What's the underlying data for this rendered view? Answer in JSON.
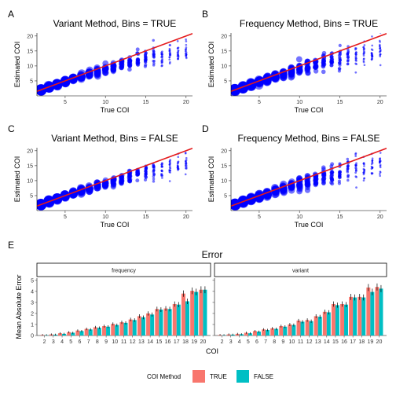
{
  "chart_data": {
    "scatter_panels": [
      {
        "letter": "A",
        "type": "scatter",
        "title": "Variant Method, Bins = TRUE",
        "xlabel": "True COI",
        "ylabel": "Estimated COI",
        "xticks": [
          5,
          10,
          15,
          20
        ],
        "yticks": [
          5,
          10,
          15,
          20
        ],
        "xlim": [
          1.5,
          20.8
        ],
        "ylim": [
          0,
          21
        ],
        "reference_line": "y = x",
        "estimates": [
          {
            "x": 2,
            "mean": 2.0,
            "spread": 0.2
          },
          {
            "x": 3,
            "mean": 3.0,
            "spread": 0.3
          },
          {
            "x": 4,
            "mean": 3.8,
            "spread": 0.4
          },
          {
            "x": 5,
            "mean": 4.8,
            "spread": 0.5
          },
          {
            "x": 6,
            "mean": 5.6,
            "spread": 0.6
          },
          {
            "x": 7,
            "mean": 6.4,
            "spread": 0.8
          },
          {
            "x": 8,
            "mean": 7.3,
            "spread": 1.0
          },
          {
            "x": 9,
            "mean": 8.1,
            "spread": 1.2
          },
          {
            "x": 10,
            "mean": 8.9,
            "spread": 1.4
          },
          {
            "x": 11,
            "mean": 9.7,
            "spread": 1.6
          },
          {
            "x": 12,
            "mean": 10.5,
            "spread": 1.8
          },
          {
            "x": 13,
            "mean": 11.2,
            "spread": 2.0
          },
          {
            "x": 14,
            "mean": 11.9,
            "spread": 2.2
          },
          {
            "x": 15,
            "mean": 12.6,
            "spread": 2.4
          },
          {
            "x": 16,
            "mean": 13.1,
            "spread": 2.6
          },
          {
            "x": 17,
            "mean": 13.7,
            "spread": 2.8
          },
          {
            "x": 18,
            "mean": 14.2,
            "spread": 3.0
          },
          {
            "x": 19,
            "mean": 14.8,
            "spread": 3.1
          },
          {
            "x": 20,
            "mean": 15.2,
            "spread": 3.3
          }
        ]
      },
      {
        "letter": "B",
        "type": "scatter",
        "title": "Frequency Method, Bins = TRUE",
        "xlabel": "True COI",
        "ylabel": "Estimated COI",
        "xticks": [
          5,
          10,
          15,
          20
        ],
        "yticks": [
          5,
          10,
          15,
          20
        ],
        "xlim": [
          1.5,
          20.8
        ],
        "ylim": [
          0,
          21
        ],
        "reference_line": "y = x",
        "estimates": [
          {
            "x": 2,
            "mean": 2.0,
            "spread": 0.3
          },
          {
            "x": 3,
            "mean": 2.9,
            "spread": 0.4
          },
          {
            "x": 4,
            "mean": 3.8,
            "spread": 0.5
          },
          {
            "x": 5,
            "mean": 4.7,
            "spread": 0.6
          },
          {
            "x": 6,
            "mean": 5.5,
            "spread": 0.8
          },
          {
            "x": 7,
            "mean": 6.3,
            "spread": 1.0
          },
          {
            "x": 8,
            "mean": 7.2,
            "spread": 1.3
          },
          {
            "x": 9,
            "mean": 8.0,
            "spread": 1.6
          },
          {
            "x": 10,
            "mean": 8.8,
            "spread": 1.9
          },
          {
            "x": 11,
            "mean": 9.6,
            "spread": 2.2
          },
          {
            "x": 12,
            "mean": 10.3,
            "spread": 2.5
          },
          {
            "x": 13,
            "mean": 11.0,
            "spread": 2.8
          },
          {
            "x": 14,
            "mean": 11.7,
            "spread": 3.0
          },
          {
            "x": 15,
            "mean": 12.4,
            "spread": 3.3
          },
          {
            "x": 16,
            "mean": 13.0,
            "spread": 3.5
          },
          {
            "x": 17,
            "mean": 13.6,
            "spread": 3.7
          },
          {
            "x": 18,
            "mean": 14.1,
            "spread": 3.9
          },
          {
            "x": 19,
            "mean": 14.6,
            "spread": 4.0
          },
          {
            "x": 20,
            "mean": 15.0,
            "spread": 4.2
          }
        ]
      },
      {
        "letter": "C",
        "type": "scatter",
        "title": "Variant Method, Bins = FALSE",
        "xlabel": "True COI",
        "ylabel": "Estimated COI",
        "xticks": [
          5,
          10,
          15,
          20
        ],
        "yticks": [
          5,
          10,
          15,
          20
        ],
        "xlim": [
          1.5,
          20.8
        ],
        "ylim": [
          0,
          21
        ],
        "reference_line": "y = x",
        "estimates": [
          {
            "x": 2,
            "mean": 2.0,
            "spread": 0.2
          },
          {
            "x": 3,
            "mean": 3.0,
            "spread": 0.3
          },
          {
            "x": 4,
            "mean": 3.9,
            "spread": 0.4
          },
          {
            "x": 5,
            "mean": 4.8,
            "spread": 0.5
          },
          {
            "x": 6,
            "mean": 5.7,
            "spread": 0.6
          },
          {
            "x": 7,
            "mean": 6.5,
            "spread": 0.8
          },
          {
            "x": 8,
            "mean": 7.4,
            "spread": 1.0
          },
          {
            "x": 9,
            "mean": 8.2,
            "spread": 1.2
          },
          {
            "x": 10,
            "mean": 9.0,
            "spread": 1.4
          },
          {
            "x": 11,
            "mean": 9.8,
            "spread": 1.6
          },
          {
            "x": 12,
            "mean": 10.6,
            "spread": 1.8
          },
          {
            "x": 13,
            "mean": 11.3,
            "spread": 2.0
          },
          {
            "x": 14,
            "mean": 12.0,
            "spread": 2.2
          },
          {
            "x": 15,
            "mean": 12.7,
            "spread": 2.4
          },
          {
            "x": 16,
            "mean": 13.3,
            "spread": 2.6
          },
          {
            "x": 17,
            "mean": 13.9,
            "spread": 2.8
          },
          {
            "x": 18,
            "mean": 14.5,
            "spread": 3.0
          },
          {
            "x": 19,
            "mean": 15.0,
            "spread": 3.1
          },
          {
            "x": 20,
            "mean": 15.6,
            "spread": 3.3
          }
        ]
      },
      {
        "letter": "D",
        "type": "scatter",
        "title": "Frequency Method, Bins = FALSE",
        "xlabel": "True COI",
        "ylabel": "Estimated COI",
        "xticks": [
          5,
          10,
          15,
          20
        ],
        "yticks": [
          5,
          10,
          15,
          20
        ],
        "xlim": [
          1.5,
          20.8
        ],
        "ylim": [
          0,
          21
        ],
        "reference_line": "y = x",
        "estimates": [
          {
            "x": 2,
            "mean": 2.0,
            "spread": 0.3
          },
          {
            "x": 3,
            "mean": 3.0,
            "spread": 0.4
          },
          {
            "x": 4,
            "mean": 3.9,
            "spread": 0.5
          },
          {
            "x": 5,
            "mean": 4.8,
            "spread": 0.6
          },
          {
            "x": 6,
            "mean": 5.6,
            "spread": 0.8
          },
          {
            "x": 7,
            "mean": 6.5,
            "spread": 1.0
          },
          {
            "x": 8,
            "mean": 7.3,
            "spread": 1.3
          },
          {
            "x": 9,
            "mean": 8.1,
            "spread": 1.6
          },
          {
            "x": 10,
            "mean": 8.9,
            "spread": 1.9
          },
          {
            "x": 11,
            "mean": 9.7,
            "spread": 2.2
          },
          {
            "x": 12,
            "mean": 10.4,
            "spread": 2.5
          },
          {
            "x": 13,
            "mean": 11.2,
            "spread": 2.8
          },
          {
            "x": 14,
            "mean": 11.9,
            "spread": 3.0
          },
          {
            "x": 15,
            "mean": 12.6,
            "spread": 3.3
          },
          {
            "x": 16,
            "mean": 13.2,
            "spread": 3.5
          },
          {
            "x": 17,
            "mean": 13.8,
            "spread": 3.7
          },
          {
            "x": 18,
            "mean": 14.4,
            "spread": 3.9
          },
          {
            "x": 19,
            "mean": 15.0,
            "spread": 4.0
          },
          {
            "x": 20,
            "mean": 15.5,
            "spread": 4.2
          }
        ]
      }
    ],
    "error_panel": {
      "letter": "E",
      "type": "bar",
      "title": "Error",
      "xlabel": "COI",
      "ylabel": "Mean Absolute Error",
      "yticks": [
        0,
        1,
        2,
        3,
        4,
        5
      ],
      "ylim": [
        0,
        5.2
      ],
      "categories": [
        "2",
        "3",
        "4",
        "5",
        "6",
        "7",
        "8",
        "9",
        "10",
        "11",
        "12",
        "13",
        "14",
        "15",
        "16",
        "17",
        "18",
        "19",
        "20"
      ],
      "legend_title": "COI Method",
      "legend_position": "bottom",
      "series_colors": {
        "TRUE": "#F8766D",
        "FALSE": "#00BFC4"
      },
      "facets": [
        {
          "label": "frequency",
          "series": [
            {
              "name": "TRUE",
              "values": [
                0.05,
                0.1,
                0.2,
                0.3,
                0.45,
                0.6,
                0.75,
                0.85,
                1.05,
                1.2,
                1.45,
                1.75,
                2.0,
                2.4,
                2.45,
                2.85,
                3.8,
                4.05,
                4.15
              ]
            },
            {
              "name": "FALSE",
              "values": [
                0.03,
                0.08,
                0.15,
                0.25,
                0.4,
                0.55,
                0.7,
                0.8,
                0.95,
                1.15,
                1.4,
                1.65,
                1.9,
                2.35,
                2.4,
                2.8,
                3.1,
                3.95,
                4.15
              ]
            }
          ]
        },
        {
          "label": "variant",
          "series": [
            {
              "name": "TRUE",
              "values": [
                0.05,
                0.1,
                0.15,
                0.25,
                0.4,
                0.55,
                0.65,
                0.85,
                1.0,
                1.35,
                1.4,
                1.75,
                2.15,
                2.85,
                2.85,
                3.5,
                3.5,
                4.35,
                4.4
              ]
            },
            {
              "name": "FALSE",
              "values": [
                0.03,
                0.08,
                0.12,
                0.2,
                0.35,
                0.5,
                0.6,
                0.8,
                0.95,
                1.25,
                1.3,
                1.7,
                2.1,
                2.75,
                2.8,
                3.45,
                3.45,
                3.95,
                4.25
              ]
            }
          ]
        }
      ]
    }
  },
  "colors": {
    "points": "#0000FF",
    "reference_line": "#E41A1C",
    "strip_fill": "#FFFFFF",
    "strip_border": "#000000",
    "error_bars": "#000000"
  }
}
